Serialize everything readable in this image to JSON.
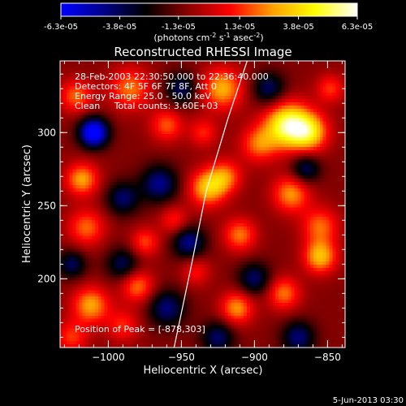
{
  "colorbar": {
    "tick_labels": [
      "-6.3e-05",
      "-3.8e-05",
      "-1.3e-05",
      "1.3e-05",
      "3.8e-05",
      "6.3e-05"
    ],
    "tick_values": [
      -6.3e-05,
      -3.8e-05,
      -1.3e-05,
      1.3e-05,
      3.8e-05,
      6.3e-05
    ],
    "range": [
      -6.3e-05,
      6.3e-05
    ],
    "colors": [
      "#0000ff",
      "#00008a",
      "#000000",
      "#8a0000",
      "#ff0000",
      "#ffa000",
      "#ffff00",
      "#ffffff"
    ],
    "units_parts": [
      "(photons cm",
      "-2",
      " s",
      "-1",
      " asec",
      "-2",
      ")"
    ]
  },
  "image_info": {
    "time_range": "28-Feb-2003 22:30:50.000 to 22:36:40.000",
    "detectors": "Detectors: 4F 5F 6F 7F 8F, Att 0",
    "energy_range": "Energy Range: 25.0 - 50.0 keV",
    "clean": "Clean     Total counts: 3.60E+03",
    "peak": "Position of Peak = [-878,303]"
  },
  "footer": {
    "date": "5-Jun-2013 03:30"
  },
  "chart_data": {
    "type": "heatmap",
    "title": "Reconstructed RHESSI Image",
    "xlabel": "Heliocentric X (arcsec)",
    "ylabel": "Heliocentric Y (arcsec)",
    "xlim": [
      -1033,
      -838
    ],
    "ylim": [
      153,
      349
    ],
    "x_tick_values": [
      -1000,
      -950,
      -900,
      -850
    ],
    "x_tick_labels": [
      "−1000",
      "−950",
      "−900",
      "−850"
    ],
    "y_tick_values": [
      200,
      250,
      300
    ],
    "y_tick_labels": [
      "200",
      "250",
      "300"
    ],
    "limb_line": [
      [
        -955,
        153
      ],
      [
        -943,
        210
      ],
      [
        -933,
        260
      ],
      [
        -918,
        310
      ],
      [
        -905,
        349
      ]
    ],
    "peak_position": [
      -878,
      303
    ],
    "blobs": [
      {
        "x": -877,
        "y": 305,
        "value": 6.3e-05,
        "sigma": 11
      },
      {
        "x": -862,
        "y": 300,
        "value": 4.2e-05,
        "sigma": 9
      },
      {
        "x": -922,
        "y": 330,
        "value": 4e-05,
        "sigma": 10
      },
      {
        "x": -897,
        "y": 292,
        "value": 3e-05,
        "sigma": 9
      },
      {
        "x": -875,
        "y": 258,
        "value": 3.6e-05,
        "sigma": 9
      },
      {
        "x": -932,
        "y": 262,
        "value": 4.2e-05,
        "sigma": 9
      },
      {
        "x": -920,
        "y": 270,
        "value": 3e-05,
        "sigma": 8
      },
      {
        "x": -910,
        "y": 230,
        "value": 3.2e-05,
        "sigma": 8
      },
      {
        "x": -855,
        "y": 236,
        "value": 3e-05,
        "sigma": 9
      },
      {
        "x": -855,
        "y": 215,
        "value": 4.2e-05,
        "sigma": 8
      },
      {
        "x": -880,
        "y": 190,
        "value": 3.2e-05,
        "sigma": 8
      },
      {
        "x": -912,
        "y": 180,
        "value": 3.6e-05,
        "sigma": 8
      },
      {
        "x": -980,
        "y": 195,
        "value": 3.2e-05,
        "sigma": 8
      },
      {
        "x": -1012,
        "y": 182,
        "value": 3.8e-05,
        "sigma": 9
      },
      {
        "x": -990,
        "y": 168,
        "value": 2.2e-05,
        "sigma": 8
      },
      {
        "x": -1018,
        "y": 268,
        "value": 3.8e-05,
        "sigma": 8
      },
      {
        "x": -1015,
        "y": 235,
        "value": 3e-05,
        "sigma": 9
      },
      {
        "x": -985,
        "y": 330,
        "value": 3.2e-05,
        "sigma": 10
      },
      {
        "x": -1022,
        "y": 325,
        "value": 3e-05,
        "sigma": 8
      },
      {
        "x": -960,
        "y": 305,
        "value": 2.8e-05,
        "sigma": 8
      },
      {
        "x": -975,
        "y": 225,
        "value": 2.6e-05,
        "sigma": 7
      },
      {
        "x": -955,
        "y": 240,
        "value": 2.2e-05,
        "sigma": 7
      },
      {
        "x": -848,
        "y": 330,
        "value": 2.4e-05,
        "sigma": 7
      },
      {
        "x": -935,
        "y": 300,
        "value": 2.2e-05,
        "sigma": 7
      },
      {
        "x": -940,
        "y": 205,
        "value": 2e-05,
        "sigma": 7
      },
      {
        "x": -1025,
        "y": 160,
        "value": 2.4e-05,
        "sigma": 8
      },
      {
        "x": -1010,
        "y": 300,
        "value": -6.3e-05,
        "sigma": 7
      },
      {
        "x": -965,
        "y": 265,
        "value": -3.5e-05,
        "sigma": 9
      },
      {
        "x": -990,
        "y": 255,
        "value": -3e-05,
        "sigma": 8
      },
      {
        "x": -945,
        "y": 225,
        "value": -3.5e-05,
        "sigma": 8
      },
      {
        "x": -960,
        "y": 180,
        "value": -3.2e-05,
        "sigma": 9
      },
      {
        "x": -900,
        "y": 200,
        "value": -3e-05,
        "sigma": 8
      },
      {
        "x": -890,
        "y": 330,
        "value": -3e-05,
        "sigma": 8
      },
      {
        "x": -865,
        "y": 275,
        "value": -3e-05,
        "sigma": 7
      },
      {
        "x": -990,
        "y": 210,
        "value": -2.8e-05,
        "sigma": 8
      },
      {
        "x": -870,
        "y": 160,
        "value": -3.2e-05,
        "sigma": 8
      },
      {
        "x": -1025,
        "y": 210,
        "value": -2.8e-05,
        "sigma": 7
      },
      {
        "x": -950,
        "y": 330,
        "value": -2.8e-05,
        "sigma": 8
      },
      {
        "x": -925,
        "y": 160,
        "value": -3e-05,
        "sigma": 8
      }
    ]
  }
}
